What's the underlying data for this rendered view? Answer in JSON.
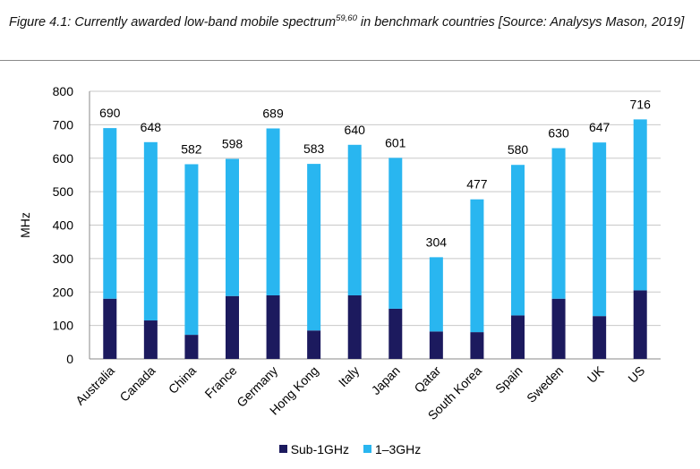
{
  "figure": {
    "caption_prefix": "Figure 4.1: Currently awarded low-band mobile spectrum",
    "caption_sup": "59,60",
    "caption_suffix": " in benchmark countries [Source: Analysys Mason, 2019]"
  },
  "chart_data": {
    "type": "bar",
    "stacked": true,
    "categories": [
      "Australia",
      "Canada",
      "China",
      "France",
      "Germany",
      "Hong Kong",
      "Italy",
      "Japan",
      "Qatar",
      "South Korea",
      "Spain",
      "Sweden",
      "UK",
      "US"
    ],
    "series": [
      {
        "name": "Sub-1GHz",
        "color": "#1c1a5e",
        "values": [
          180,
          115,
          72,
          188,
          190,
          85,
          190,
          150,
          82,
          80,
          130,
          180,
          128,
          205
        ]
      },
      {
        "name": "1–3GHz",
        "color": "#29b6f0",
        "values": [
          510,
          533,
          510,
          410,
          499,
          498,
          450,
          451,
          222,
          397,
          450,
          450,
          519,
          511
        ]
      }
    ],
    "totals": [
      690,
      648,
      582,
      598,
      689,
      583,
      640,
      601,
      304,
      477,
      580,
      630,
      647,
      716
    ],
    "ylabel": "MHz",
    "xlabel": "",
    "ylim": [
      0,
      800
    ],
    "yticks": [
      0,
      100,
      200,
      300,
      400,
      500,
      600,
      700,
      800
    ],
    "grid": true,
    "legend_position": "bottom"
  }
}
